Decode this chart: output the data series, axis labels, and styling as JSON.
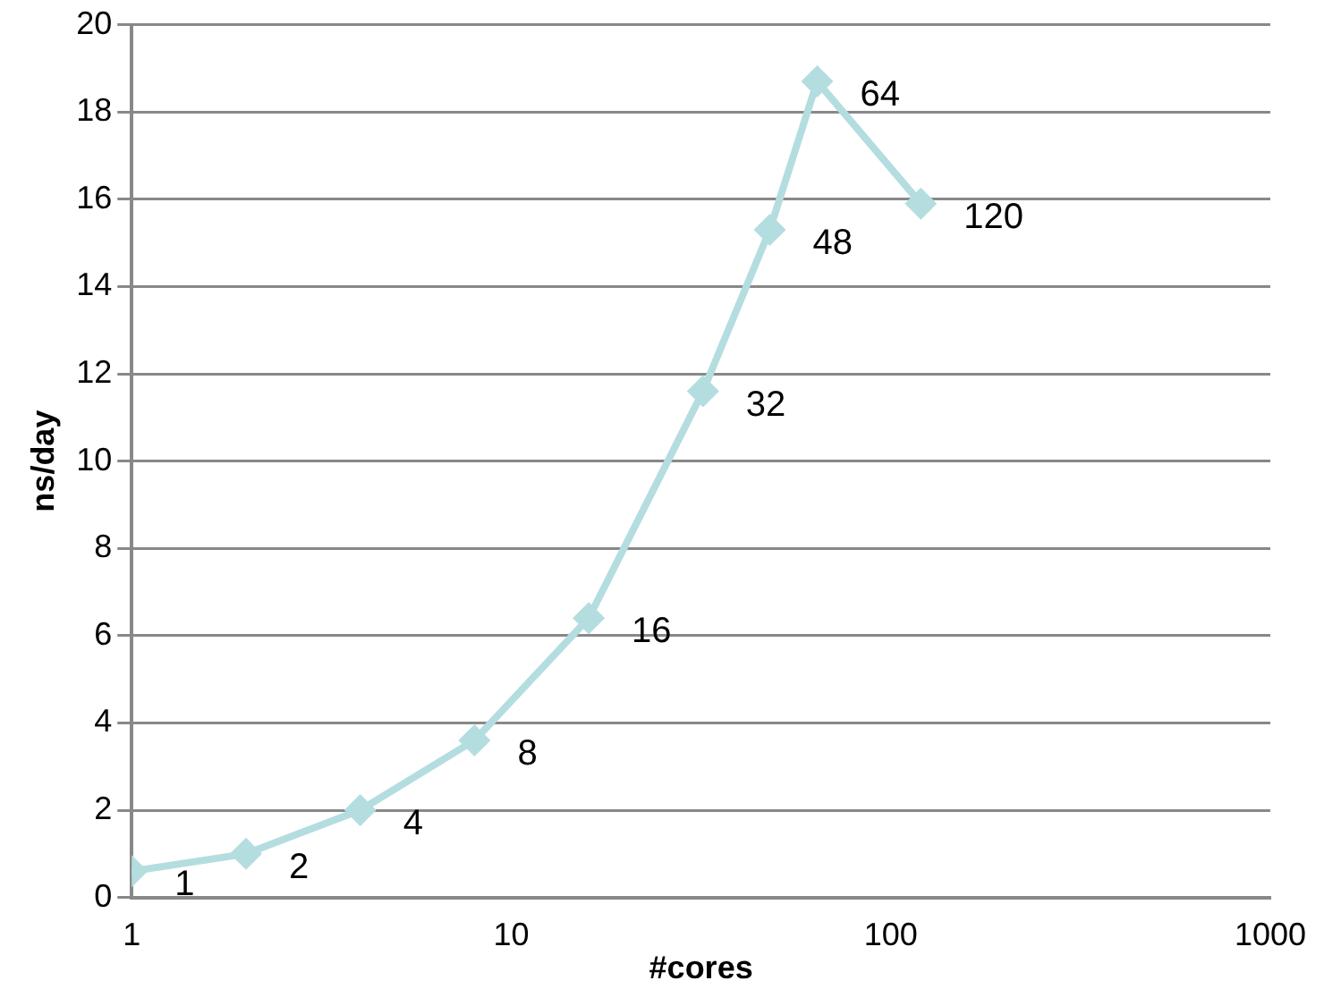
{
  "chart_data": {
    "type": "line",
    "xlabel": "#cores",
    "ylabel": "ns/day",
    "x": [
      1,
      2,
      4,
      8,
      16,
      32,
      48,
      64,
      120
    ],
    "series": [
      {
        "color": "#b4dde0",
        "values": [
          0.6,
          1.0,
          2.0,
          3.6,
          6.4,
          11.6,
          15.3,
          18.7,
          15.9
        ]
      }
    ],
    "log": "x",
    "xlim": [
      1,
      1000
    ],
    "xticks": [
      1,
      10,
      100,
      1000
    ],
    "ylim": [
      0,
      20
    ],
    "yticks": [
      0,
      2,
      4,
      6,
      8,
      10,
      12,
      14,
      16,
      18,
      20
    ],
    "grid": "y",
    "legend": false,
    "marker": "diamond",
    "line_style": "solid",
    "annotations": [
      {
        "text": "1",
        "x": 1,
        "y": 0.6
      },
      {
        "text": "2",
        "x": 2,
        "y": 1.0
      },
      {
        "text": "4",
        "x": 4,
        "y": 2.0
      },
      {
        "text": "8",
        "x": 8,
        "y": 3.6
      },
      {
        "text": "16",
        "x": 16,
        "y": 6.4
      },
      {
        "text": "32",
        "x": 32,
        "y": 11.6
      },
      {
        "text": "48",
        "x": 48,
        "y": 15.3
      },
      {
        "text": "64",
        "x": 64,
        "y": 18.7
      },
      {
        "text": "120",
        "x": 120,
        "y": 15.9
      }
    ]
  }
}
